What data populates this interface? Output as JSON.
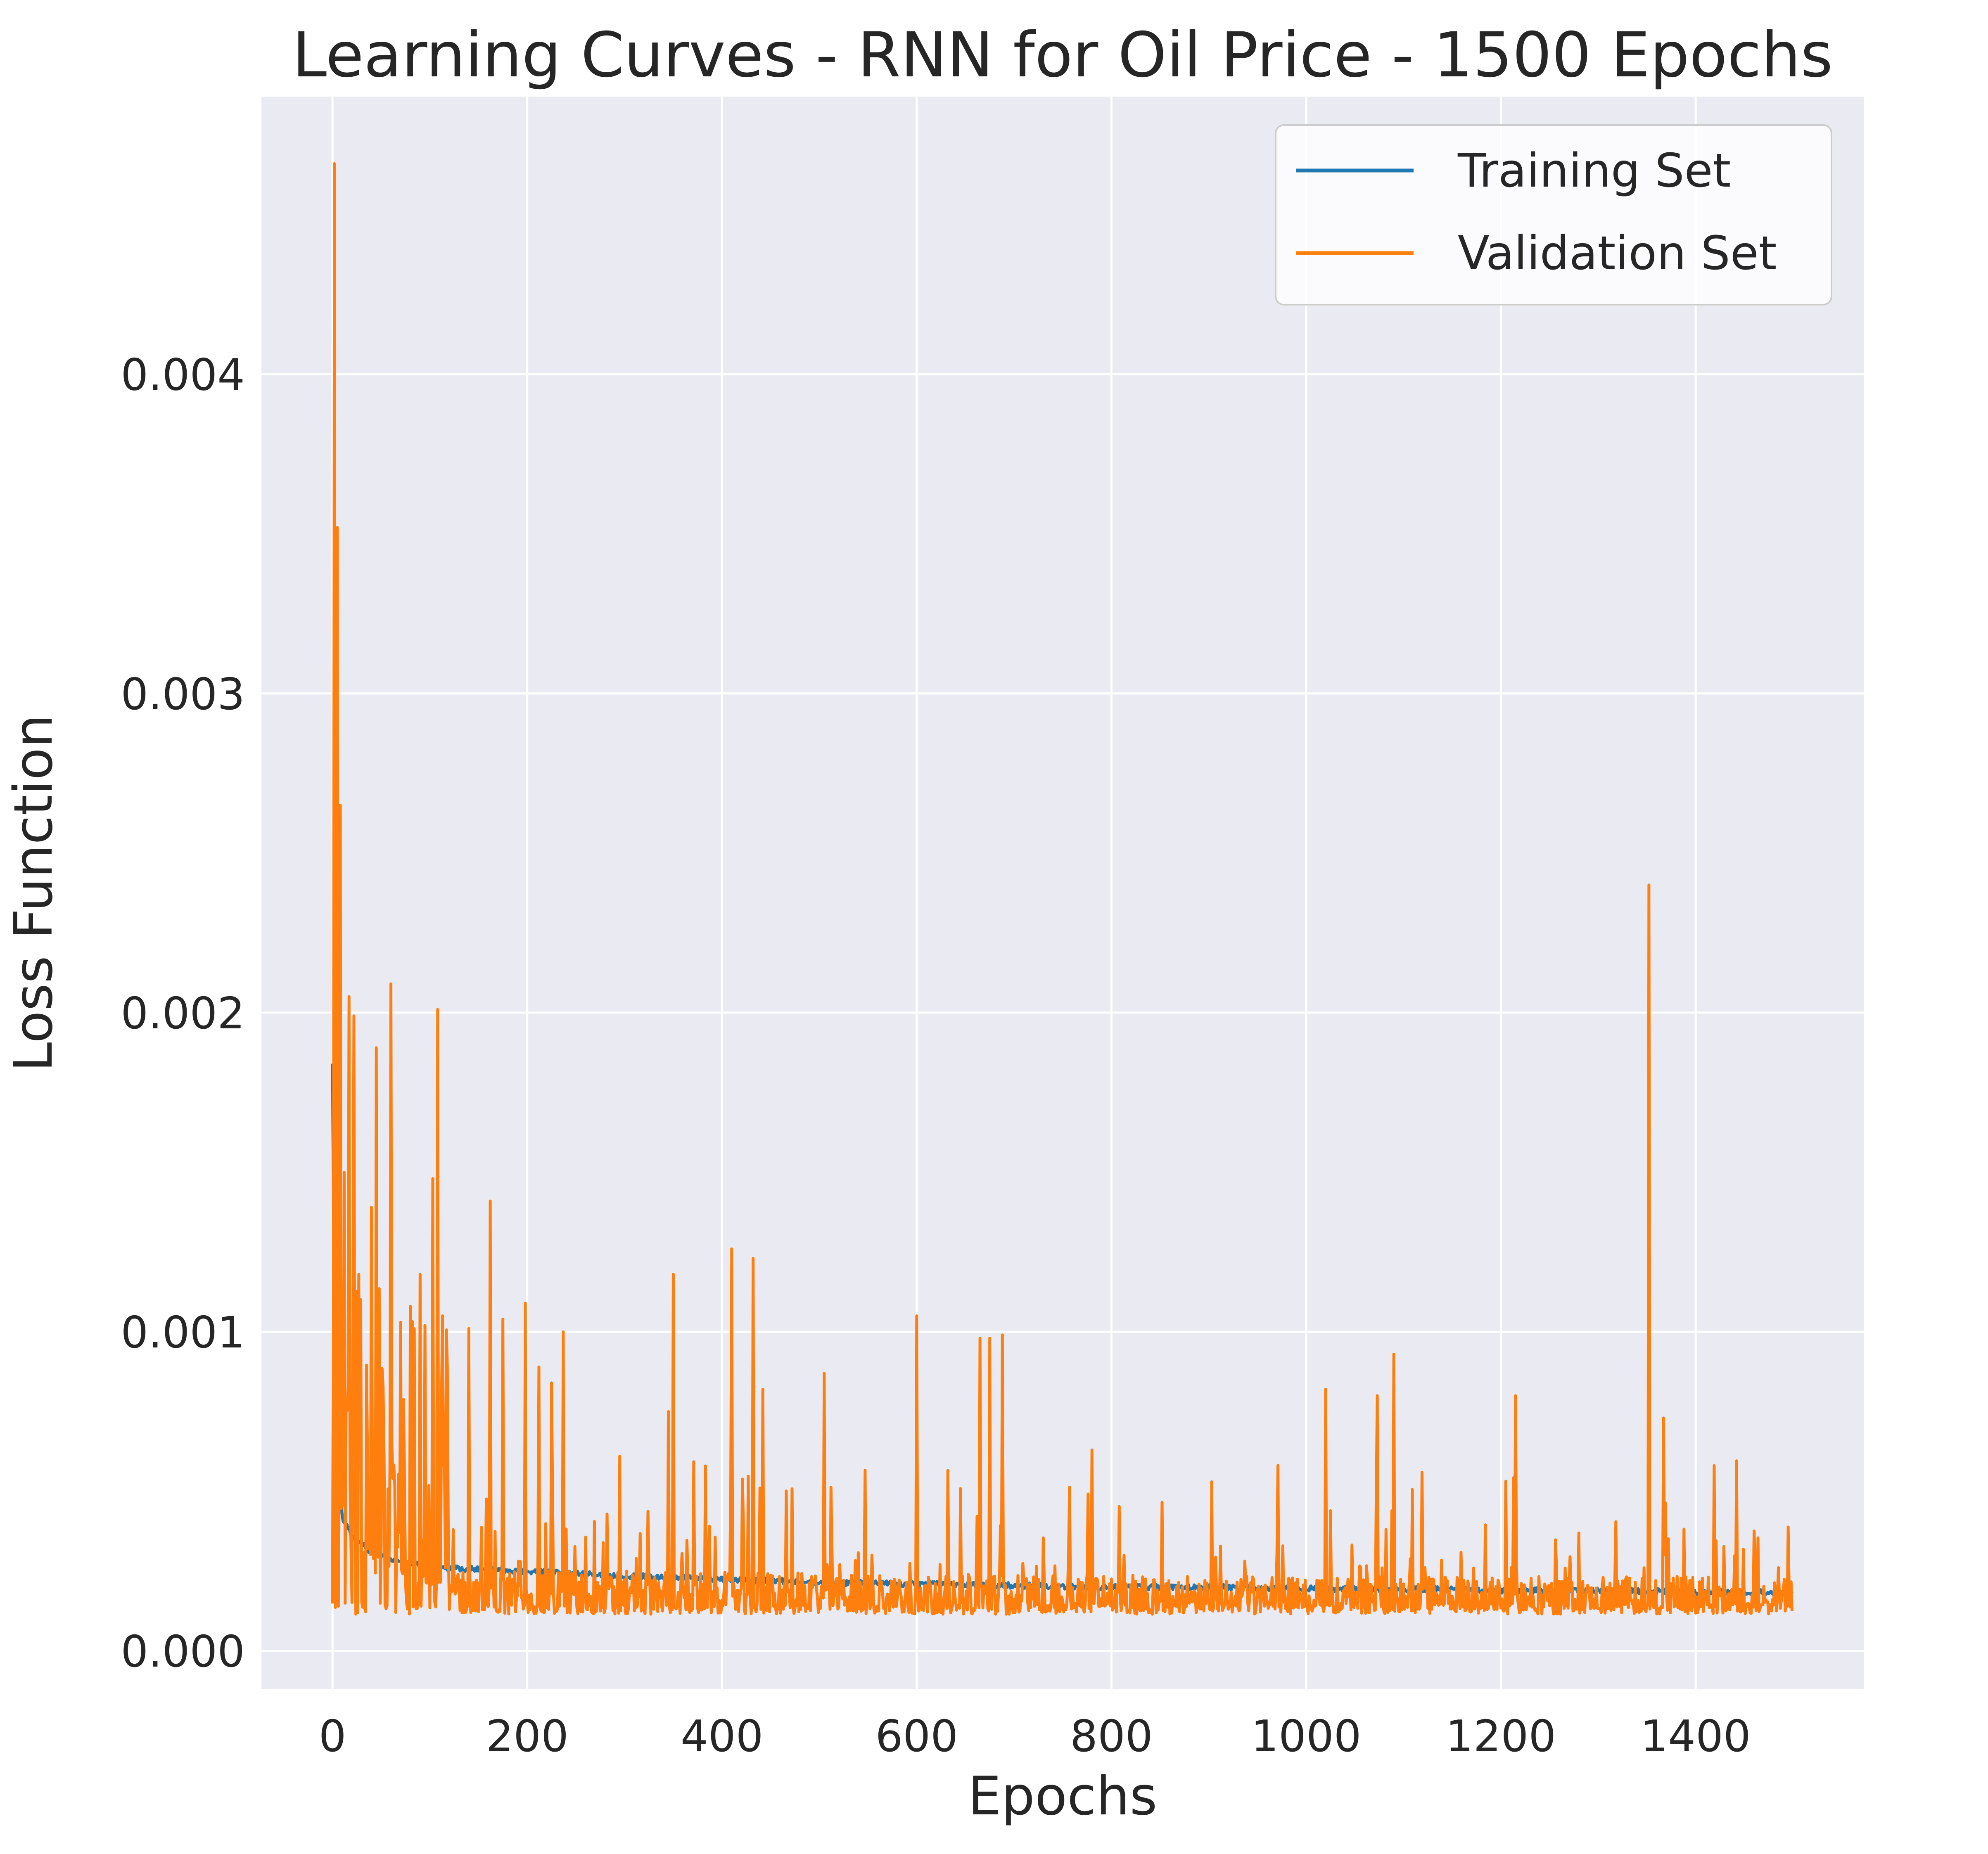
{
  "chart_data": {
    "type": "line",
    "title": "Learning Curves - RNN for Oil Price - 1500 Epochs",
    "xlabel": "Epochs",
    "ylabel": "Loss Function",
    "xlim": [
      -73,
      1573
    ],
    "ylim": [
      -0.00012,
      0.00487
    ],
    "x_ticks": [
      0,
      200,
      400,
      600,
      800,
      1000,
      1200,
      1400
    ],
    "y_ticks": [
      0.0,
      0.001,
      0.002,
      0.003,
      0.004
    ],
    "x_tick_labels": [
      "0",
      "200",
      "400",
      "600",
      "800",
      "1000",
      "1200",
      "1400"
    ],
    "y_tick_labels": [
      "0.000",
      "0.001",
      "0.002",
      "0.003",
      "0.004"
    ],
    "grid": true,
    "legend_position": "top-right",
    "epochs": 1500,
    "series": [
      {
        "name": "Training Set",
        "color": "#1f77b4",
        "keypoints": [
          [
            0,
            0.00184
          ],
          [
            2,
            0.0009
          ],
          [
            5,
            0.00055
          ],
          [
            10,
            0.00042
          ],
          [
            20,
            0.00036
          ],
          [
            40,
            0.00031
          ],
          [
            70,
            0.00028
          ],
          [
            100,
            0.000265
          ],
          [
            150,
            0.000255
          ],
          [
            200,
            0.00025
          ],
          [
            300,
            0.000235
          ],
          [
            400,
            0.000225
          ],
          [
            500,
            0.000215
          ],
          [
            600,
            0.00021
          ],
          [
            700,
            0.000205
          ],
          [
            800,
            0.0002
          ],
          [
            900,
            0.0002
          ],
          [
            1000,
            0.000195
          ],
          [
            1100,
            0.000195
          ],
          [
            1200,
            0.00019
          ],
          [
            1300,
            0.00019
          ],
          [
            1400,
            0.000185
          ],
          [
            1499,
            0.000185
          ]
        ]
      },
      {
        "name": "Validation Set",
        "color": "#ff7f0e",
        "baseline_keypoints": [
          [
            0,
            0.0008
          ],
          [
            10,
            0.00035
          ],
          [
            30,
            0.00025
          ],
          [
            80,
            0.00021
          ],
          [
            200,
            0.0002
          ],
          [
            500,
            0.00019
          ],
          [
            1000,
            0.00018
          ],
          [
            1499,
            0.00018
          ]
        ],
        "floor": 0.000115,
        "spikes": [
          [
            2,
            0.00466
          ],
          [
            5,
            0.00352
          ],
          [
            8,
            0.00265
          ],
          [
            12,
            0.0015
          ],
          [
            17,
            0.00205
          ],
          [
            22,
            0.00199
          ],
          [
            27,
            0.00118
          ],
          [
            40,
            0.00139
          ],
          [
            45,
            0.00189
          ],
          [
            60,
            0.00209
          ],
          [
            70,
            0.00103
          ],
          [
            80,
            0.00108
          ],
          [
            90,
            0.00118
          ],
          [
            95,
            0.00102
          ],
          [
            103,
            0.00148
          ],
          [
            108,
            0.00201
          ],
          [
            113,
            0.00105
          ],
          [
            140,
            0.00101
          ],
          [
            162,
            0.00141
          ],
          [
            175,
            0.00104
          ],
          [
            198,
            0.00109
          ],
          [
            212,
            0.00089
          ],
          [
            225,
            0.00084
          ],
          [
            237,
            0.001
          ],
          [
            295,
            0.00061
          ],
          [
            345,
            0.00075
          ],
          [
            350,
            0.00118
          ],
          [
            410,
            0.00126
          ],
          [
            432,
            0.00123
          ],
          [
            442,
            0.00082
          ],
          [
            505,
            0.00087
          ],
          [
            600,
            0.00105
          ],
          [
            665,
            0.00098
          ],
          [
            675,
            0.00098
          ],
          [
            688,
            0.00099
          ],
          [
            780,
            0.00063
          ],
          [
            1020,
            0.00082
          ],
          [
            1073,
            0.0008
          ],
          [
            1090,
            0.00093
          ],
          [
            1215,
            0.0008
          ],
          [
            1352,
            0.0024
          ],
          [
            1367,
            0.00073
          ]
        ]
      }
    ]
  }
}
